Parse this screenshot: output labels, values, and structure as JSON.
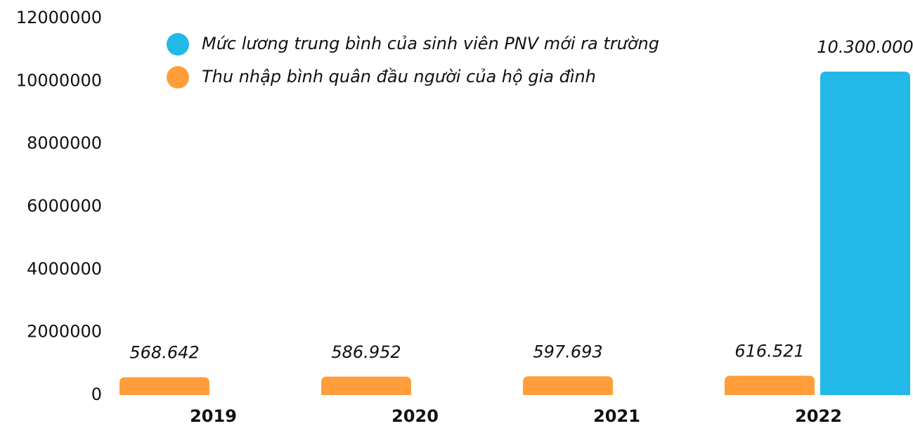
{
  "chart_data": {
    "type": "bar",
    "categories": [
      "2019",
      "2020",
      "2021",
      "2022"
    ],
    "series": [
      {
        "name": "Mức lương trung bình của sinh viên PNV mới ra trường",
        "color": "#22b8e8",
        "values": [
          null,
          null,
          null,
          10300000
        ],
        "value_labels": [
          null,
          null,
          null,
          "10.300.000"
        ]
      },
      {
        "name": "Thu nhập bình quân đầu người của hộ gia đình",
        "color": "#ff9e3a",
        "values": [
          568642,
          586952,
          597693,
          616521
        ],
        "value_labels": [
          "568.642",
          "586.952",
          "597.693",
          "616.521"
        ]
      }
    ],
    "ylim": [
      0,
      12000000
    ],
    "yticks": [
      0,
      2000000,
      4000000,
      6000000,
      8000000,
      10000000,
      12000000
    ],
    "legend": "top-left"
  }
}
